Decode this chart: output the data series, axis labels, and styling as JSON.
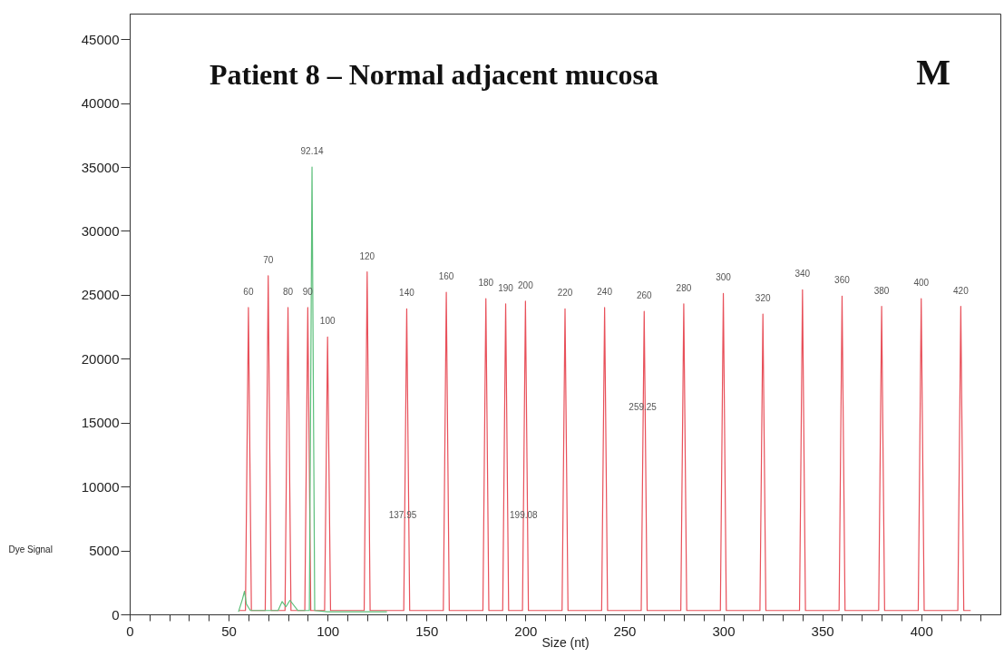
{
  "chart_data": {
    "type": "line",
    "title": "Patient 8 – Normal adjacent mucosa",
    "xlabel": "Size (nt)",
    "ylabel": "Dye Signal",
    "xlim": [
      0,
      440
    ],
    "ylim": [
      0,
      47000
    ],
    "xticks": [
      0,
      {
        "value": 10,
        "label": null
      },
      {
        "value": 20,
        "label": null
      },
      {
        "value": 30,
        "label": null
      },
      {
        "value": 40,
        "label": null
      },
      50,
      {
        "value": 60,
        "label": null
      },
      {
        "value": 70,
        "label": null
      },
      {
        "value": 80,
        "label": null
      },
      {
        "value": 90,
        "label": null
      },
      100,
      {
        "value": 110,
        "label": null
      },
      {
        "value": 120,
        "label": null
      },
      {
        "value": 130,
        "label": null
      },
      {
        "value": 140,
        "label": null
      },
      150,
      {
        "value": 160,
        "label": null
      },
      {
        "value": 170,
        "label": null
      },
      {
        "value": 180,
        "label": null
      },
      {
        "value": 190,
        "label": null
      },
      200,
      {
        "value": 210,
        "label": null
      },
      {
        "value": 220,
        "label": null
      },
      {
        "value": 230,
        "label": null
      },
      {
        "value": 240,
        "label": null
      },
      250,
      {
        "value": 260,
        "label": null
      },
      {
        "value": 270,
        "label": null
      },
      {
        "value": 280,
        "label": null
      },
      {
        "value": 290,
        "label": null
      },
      300,
      {
        "value": 310,
        "label": null
      },
      {
        "value": 320,
        "label": null
      },
      {
        "value": 330,
        "label": null
      },
      {
        "value": 340,
        "label": null
      },
      350,
      {
        "value": 360,
        "label": null
      },
      {
        "value": 370,
        "label": null
      },
      {
        "value": 380,
        "label": null
      },
      {
        "value": 390,
        "label": null
      },
      400,
      {
        "value": 410,
        "label": null
      },
      {
        "value": 420,
        "label": null
      },
      {
        "value": 430,
        "label": null
      }
    ],
    "yticks": [
      0,
      5000,
      10000,
      15000,
      20000,
      25000,
      30000,
      35000,
      40000,
      45000
    ],
    "grid": false,
    "series": [
      {
        "color": "#e8505a",
        "x": [
          55,
          58.5,
          60,
          61.5,
          68.5,
          70,
          71.5,
          78.5,
          80,
          81.5,
          88.5,
          90,
          91.5,
          98.5,
          100,
          101.5,
          118.5,
          120,
          121.5,
          138.5,
          140,
          141.5,
          158.5,
          160,
          161.5,
          178.5,
          180,
          181.5,
          188.5,
          190,
          191.5,
          198.5,
          200,
          201.5,
          218.5,
          220,
          221.5,
          238.5,
          240,
          241.5,
          258.5,
          260,
          261.5,
          278.5,
          280,
          281.5,
          298.5,
          300,
          301.5,
          318.5,
          320,
          321.5,
          338.5,
          340,
          341.5,
          358.5,
          360,
          361.5,
          378.5,
          380,
          381.5,
          398.5,
          400,
          401.5,
          418.5,
          420,
          421.5,
          425
        ],
        "values": [
          300,
          300,
          24000,
          300,
          300,
          26500,
          300,
          300,
          24000,
          300,
          300,
          24000,
          300,
          300,
          21700,
          300,
          300,
          26800,
          300,
          300,
          23900,
          300,
          300,
          25200,
          300,
          300,
          24700,
          300,
          300,
          24300,
          300,
          300,
          24500,
          300,
          300,
          23900,
          300,
          300,
          24000,
          300,
          300,
          23700,
          300,
          300,
          24300,
          300,
          300,
          25100,
          300,
          300,
          23500,
          300,
          300,
          25400,
          300,
          300,
          24900,
          300,
          300,
          24100,
          300,
          300,
          24700,
          300,
          300,
          24100,
          300,
          300
        ]
      },
      {
        "color": "#5cbf7a",
        "x": [
          55,
          57,
          58,
          59,
          61,
          65,
          75,
          77,
          79,
          81,
          85,
          90.8,
          92.14,
          93.5,
          100,
          130
        ],
        "values": [
          200,
          1200,
          1800,
          800,
          300,
          300,
          300,
          1000,
          600,
          1100,
          300,
          300,
          35000,
          300,
          200,
          200
        ]
      }
    ],
    "annotations": [
      {
        "text": "60",
        "x": 60,
        "y": 24000
      },
      {
        "text": "70",
        "x": 70,
        "y": 26500
      },
      {
        "text": "80",
        "x": 80,
        "y": 24000
      },
      {
        "text": "90",
        "x": 90,
        "y": 24000
      },
      {
        "text": "92.14",
        "x": 92.14,
        "y": 35000
      },
      {
        "text": "100",
        "x": 100,
        "y": 21700
      },
      {
        "text": "120",
        "x": 120,
        "y": 26800
      },
      {
        "text": "140",
        "x": 140,
        "y": 23900
      },
      {
        "text": "160",
        "x": 160,
        "y": 25200
      },
      {
        "text": "180",
        "x": 180,
        "y": 24700
      },
      {
        "text": "190",
        "x": 190,
        "y": 24300
      },
      {
        "text": "200",
        "x": 200,
        "y": 24500
      },
      {
        "text": "220",
        "x": 220,
        "y": 23900
      },
      {
        "text": "240",
        "x": 240,
        "y": 24000
      },
      {
        "text": "260",
        "x": 260,
        "y": 23700
      },
      {
        "text": "280",
        "x": 280,
        "y": 24300
      },
      {
        "text": "300",
        "x": 300,
        "y": 25100
      },
      {
        "text": "320",
        "x": 320,
        "y": 23500
      },
      {
        "text": "340",
        "x": 340,
        "y": 25400
      },
      {
        "text": "360",
        "x": 360,
        "y": 24900
      },
      {
        "text": "380",
        "x": 380,
        "y": 24100
      },
      {
        "text": "400",
        "x": 400,
        "y": 24700
      },
      {
        "text": "420",
        "x": 420,
        "y": 24100
      },
      {
        "text": "137.95",
        "x": 137.95,
        "y": 6500
      },
      {
        "text": "199.08",
        "x": 199.08,
        "y": 6500
      },
      {
        "text": "259.25",
        "x": 259.25,
        "y": 15000
      },
      "M"
    ]
  }
}
